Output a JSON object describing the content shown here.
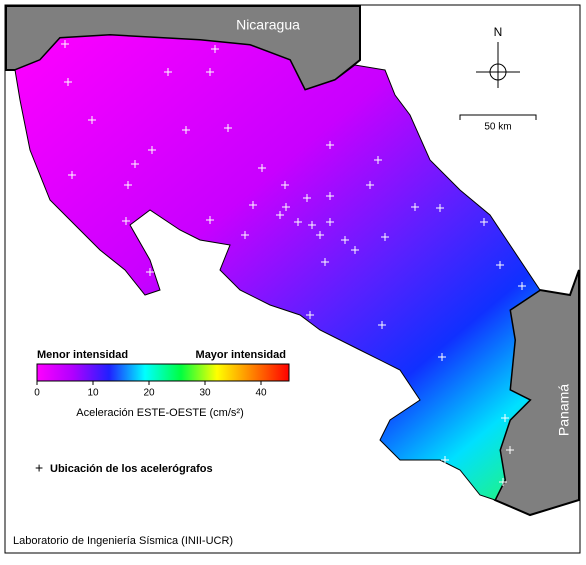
{
  "labels": {
    "north_country": "Nicaragua",
    "south_country": "Panamá",
    "north_arrow": "N",
    "scale_bar": "50 km"
  },
  "colorbar": {
    "low_label": "Menor intensidad",
    "high_label": "Mayor intensidad",
    "title": "Aceleración ESTE-OESTE (cm/s²)",
    "lim": [
      0,
      45
    ],
    "ticks": [
      0,
      10,
      20,
      30,
      40
    ],
    "colors": [
      "#ff00ff",
      "#b000ff",
      "#2020ff",
      "#00ffff",
      "#00ff40",
      "#ffff00",
      "#ff8000",
      "#ff0000"
    ]
  },
  "legend": {
    "stations": "Ubicación de los acelerógrafos"
  },
  "footer": "Laboratorio de Ingeniería Sísmica (INII-UCR)"
}
